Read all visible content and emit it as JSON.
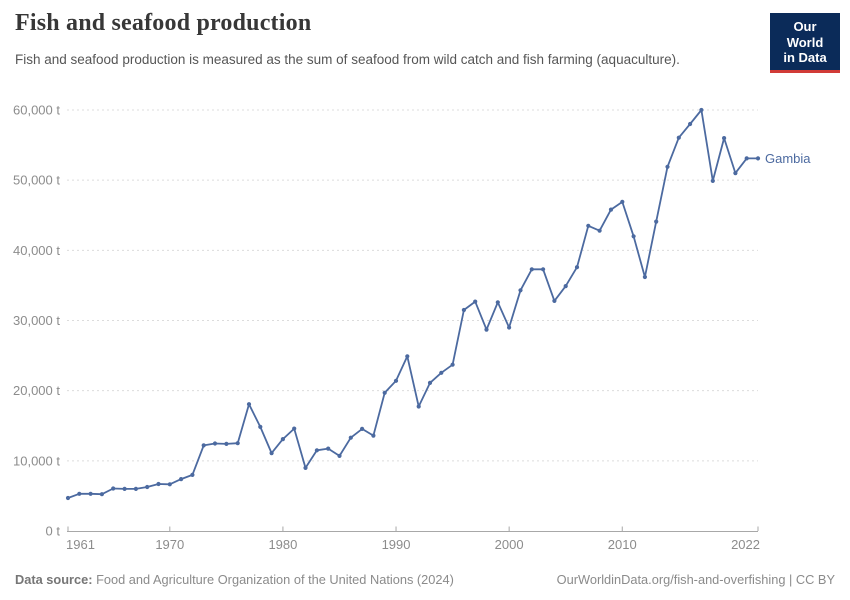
{
  "chart_data": {
    "type": "line",
    "title": "Fish and seafood production",
    "subtitle": "Fish and seafood production is measured as the sum of seafood from wild catch and fish farming (aquaculture).",
    "unit": "t",
    "entity_label": "Gambia",
    "legend_position": "end-of-line",
    "grid": "horizontal-dashed",
    "xlim": [
      1961,
      2022
    ],
    "ylim": [
      0,
      60000
    ],
    "x": [
      1961,
      1962,
      1963,
      1964,
      1965,
      1966,
      1967,
      1968,
      1969,
      1970,
      1971,
      1972,
      1973,
      1974,
      1975,
      1976,
      1977,
      1978,
      1979,
      1980,
      1981,
      1982,
      1983,
      1984,
      1985,
      1986,
      1987,
      1988,
      1989,
      1990,
      1991,
      1992,
      1993,
      1994,
      1995,
      1996,
      1997,
      1998,
      1999,
      2000,
      2001,
      2002,
      2003,
      2004,
      2005,
      2006,
      2007,
      2008,
      2009,
      2010,
      2011,
      2012,
      2013,
      2014,
      2015,
      2016,
      2017,
      2018,
      2019,
      2020,
      2021,
      2022
    ],
    "series": [
      {
        "name": "Gambia",
        "color": "#4c6aa0",
        "values": [
          4700,
          5300,
          5300,
          5250,
          6050,
          6000,
          6000,
          6270,
          6700,
          6650,
          7400,
          8000,
          12200,
          12470,
          12420,
          12520,
          18070,
          14830,
          11100,
          13100,
          14600,
          9000,
          11500,
          11750,
          10700,
          13300,
          14550,
          13600,
          19700,
          21400,
          24900,
          17750,
          21100,
          22550,
          23700,
          31500,
          32700,
          28700,
          32600,
          29000,
          34300,
          37300,
          37300,
          32800,
          34900,
          37600,
          43500,
          42800,
          45800,
          46900,
          42000,
          36200,
          44100,
          51900,
          56050,
          58000,
          60000,
          49900,
          56000,
          51000,
          53100,
          53100
        ]
      }
    ],
    "x_ticks": {
      "values": [
        1961,
        1970,
        1980,
        1990,
        2000,
        2010,
        2022
      ],
      "labels": [
        "1961",
        "1970",
        "1980",
        "1990",
        "2000",
        "2010",
        "2022"
      ]
    },
    "y_ticks": {
      "values": [
        0,
        10000,
        20000,
        30000,
        40000,
        50000,
        60000
      ],
      "labels": [
        "0 t",
        "10,000 t",
        "20,000 t",
        "30,000 t",
        "40,000 t",
        "50,000 t",
        "60,000 t"
      ]
    }
  },
  "header": {
    "logo_line1": "Our World",
    "logo_line2": "in Data"
  },
  "footer": {
    "datasource_label": "Data source:",
    "datasource_text": " Food and Agriculture Organization of the United Nations (2024)",
    "link_text": "OurWorldinData.org/fish-and-overfishing | CC BY"
  },
  "colors": {
    "line": "#4c6aa0",
    "entity_label": "#4c6aa0",
    "gridline": "#dcdcdc",
    "axis": "#a8a8a8",
    "tick_label": "#8c8c8c",
    "logo_bg": "#0b2b59",
    "logo_red": "#d13b37"
  }
}
